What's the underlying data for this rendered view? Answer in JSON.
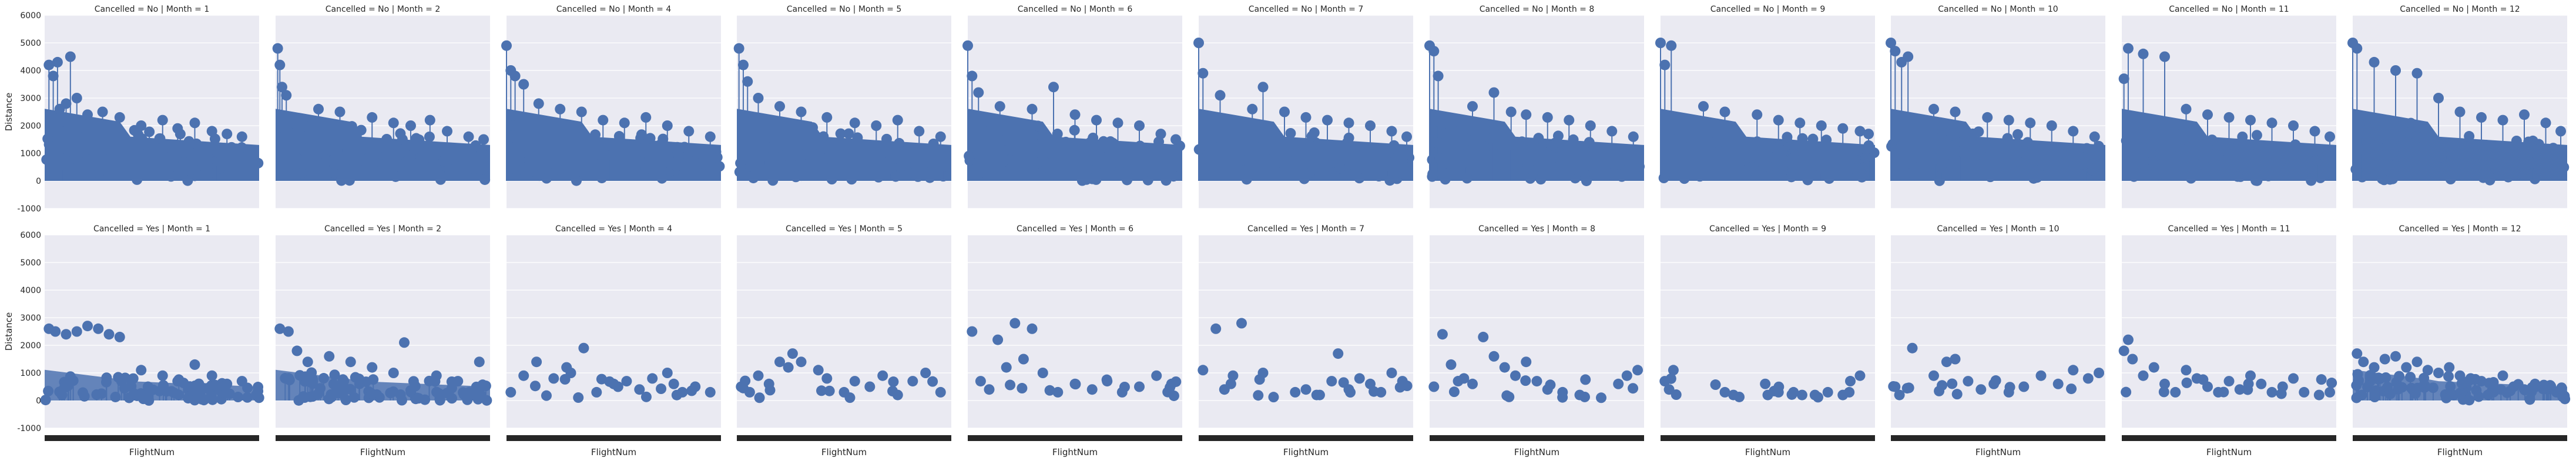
{
  "chart_data": {
    "type": "scatter",
    "title": "",
    "xlabel": "FlightNum",
    "ylabel": "Distance",
    "ylim": [
      -1000,
      6000
    ],
    "yticks": [
      -1000,
      0,
      1000,
      2000,
      3000,
      4000,
      5000,
      6000
    ],
    "grid": true,
    "legend": "none",
    "colors": {
      "points": "#4c72b0",
      "panel_bg": "#eaeaf2",
      "grid": "#ffffff",
      "xticks": "#262626",
      "text": "#262626"
    },
    "panels": [
      {
        "title": "Cancelled = No | Month = 1",
        "cancelled": "No",
        "month": 1,
        "density": "dense",
        "x": [
          0.02,
          0.04,
          0.06,
          0.07,
          0.1,
          0.12,
          0.15,
          0.2,
          0.27,
          0.35,
          0.45,
          0.55,
          0.62,
          0.7,
          0.78,
          0.85,
          0.92
        ],
        "y": [
          4200,
          3800,
          4300,
          2600,
          2800,
          4500,
          3000,
          2400,
          2500,
          2300,
          2000,
          2200,
          1900,
          2100,
          1800,
          1700,
          1600
        ]
      },
      {
        "title": "Cancelled = No | Month = 2",
        "cancelled": "No",
        "month": 2,
        "density": "dense",
        "x": [
          0.01,
          0.02,
          0.03,
          0.05,
          0.2,
          0.3,
          0.45,
          0.55,
          0.63,
          0.72,
          0.8,
          0.9,
          0.97
        ],
        "y": [
          4800,
          4200,
          3400,
          3100,
          2600,
          2500,
          2300,
          2100,
          2000,
          2200,
          1800,
          1600,
          1500
        ]
      },
      {
        "title": "Cancelled = No | Month = 4",
        "cancelled": "No",
        "month": 4,
        "density": "dense",
        "x": [
          0.0,
          0.02,
          0.04,
          0.08,
          0.15,
          0.25,
          0.35,
          0.45,
          0.55,
          0.65,
          0.75,
          0.85,
          0.95
        ],
        "y": [
          4900,
          4000,
          3800,
          3500,
          2800,
          2600,
          2500,
          2200,
          2100,
          2300,
          2000,
          1800,
          1600
        ]
      },
      {
        "title": "Cancelled = No | Month = 5",
        "cancelled": "No",
        "month": 5,
        "density": "dense",
        "x": [
          0.01,
          0.03,
          0.05,
          0.1,
          0.2,
          0.3,
          0.42,
          0.55,
          0.65,
          0.75,
          0.85,
          0.95
        ],
        "y": [
          4800,
          4200,
          3600,
          3000,
          2700,
          2500,
          2300,
          2100,
          2000,
          2200,
          1800,
          1600
        ]
      },
      {
        "title": "Cancelled = No | Month = 6",
        "cancelled": "No",
        "month": 6,
        "density": "dense",
        "x": [
          0.0,
          0.02,
          0.05,
          0.15,
          0.3,
          0.4,
          0.5,
          0.6,
          0.7,
          0.8,
          0.9,
          0.97
        ],
        "y": [
          4900,
          3800,
          3200,
          2700,
          2600,
          3400,
          2400,
          2200,
          2100,
          2000,
          1700,
          1500
        ]
      },
      {
        "title": "Cancelled = No | Month = 7",
        "cancelled": "No",
        "month": 7,
        "density": "dense",
        "x": [
          0.0,
          0.02,
          0.1,
          0.25,
          0.3,
          0.4,
          0.5,
          0.6,
          0.7,
          0.8,
          0.9,
          0.97
        ],
        "y": [
          5000,
          3900,
          3100,
          2600,
          3400,
          2500,
          2300,
          2200,
          2100,
          2000,
          1800,
          1600
        ]
      },
      {
        "title": "Cancelled = No | Month = 8",
        "cancelled": "No",
        "month": 8,
        "density": "dense",
        "x": [
          0.0,
          0.02,
          0.04,
          0.2,
          0.3,
          0.38,
          0.45,
          0.55,
          0.65,
          0.75,
          0.85,
          0.95
        ],
        "y": [
          4900,
          4700,
          3800,
          2700,
          3200,
          2500,
          2400,
          2300,
          2200,
          2000,
          1800,
          1600
        ]
      },
      {
        "title": "Cancelled = No | Month = 9",
        "cancelled": "No",
        "month": 9,
        "density": "dense",
        "x": [
          0.0,
          0.02,
          0.05,
          0.2,
          0.3,
          0.45,
          0.55,
          0.65,
          0.75,
          0.85,
          0.93,
          0.97
        ],
        "y": [
          5000,
          4200,
          4900,
          2700,
          2500,
          2400,
          2200,
          2100,
          2000,
          1900,
          1800,
          1700
        ]
      },
      {
        "title": "Cancelled = No | Month = 10",
        "cancelled": "No",
        "month": 10,
        "density": "dense",
        "x": [
          0.0,
          0.02,
          0.05,
          0.08,
          0.2,
          0.3,
          0.45,
          0.55,
          0.65,
          0.75,
          0.85,
          0.95
        ],
        "y": [
          5000,
          4700,
          4300,
          4500,
          2600,
          2500,
          2300,
          2200,
          2100,
          2000,
          1800,
          1600
        ]
      },
      {
        "title": "Cancelled = No | Month = 11",
        "cancelled": "No",
        "month": 11,
        "density": "dense",
        "x": [
          0.01,
          0.03,
          0.1,
          0.2,
          0.3,
          0.4,
          0.5,
          0.6,
          0.7,
          0.8,
          0.9,
          0.97
        ],
        "y": [
          3700,
          4800,
          4600,
          4500,
          2600,
          2400,
          2300,
          2200,
          2100,
          2000,
          1800,
          1600
        ]
      },
      {
        "title": "Cancelled = No | Month = 12",
        "cancelled": "No",
        "month": 12,
        "density": "dense",
        "x": [
          0.0,
          0.02,
          0.1,
          0.2,
          0.3,
          0.4,
          0.5,
          0.6,
          0.7,
          0.8,
          0.9,
          0.97
        ],
        "y": [
          5000,
          4800,
          4300,
          4000,
          3900,
          3000,
          2500,
          2300,
          2200,
          2400,
          2100,
          1800
        ]
      },
      {
        "title": "Cancelled = Yes | Month = 1",
        "cancelled": "Yes",
        "month": 1,
        "density": "dense",
        "x": [
          0.02,
          0.05,
          0.1,
          0.15,
          0.2,
          0.25,
          0.3,
          0.35,
          0.45,
          0.55,
          0.62,
          0.7,
          0.78,
          0.85,
          0.92
        ],
        "y": [
          2600,
          2500,
          2400,
          2500,
          2700,
          2600,
          2400,
          2300,
          1100,
          900,
          700,
          1300,
          900,
          600,
          700
        ]
      },
      {
        "title": "Cancelled = Yes | Month = 2",
        "cancelled": "Yes",
        "month": 2,
        "density": "dense",
        "x": [
          0.02,
          0.06,
          0.1,
          0.15,
          0.25,
          0.35,
          0.45,
          0.55,
          0.6,
          0.75,
          0.85,
          0.95
        ],
        "y": [
          2600,
          2500,
          1800,
          1400,
          1600,
          1400,
          1200,
          1000,
          2100,
          900,
          700,
          1400
        ]
      },
      {
        "title": "Cancelled = Yes | Month = 4",
        "cancelled": "Yes",
        "month": 4,
        "density": "sparse",
        "x": [
          0.02,
          0.08,
          0.14,
          0.22,
          0.28,
          0.3,
          0.36,
          0.42,
          0.5,
          0.52,
          0.56,
          0.62,
          0.68,
          0.75,
          0.78,
          0.82,
          0.88,
          0.95
        ],
        "y": [
          300,
          900,
          1400,
          800,
          1200,
          1000,
          1900,
          300,
          600,
          500,
          700,
          400,
          800,
          1000,
          600,
          300,
          500,
          300
        ]
      },
      {
        "title": "Cancelled = Yes | Month = 5",
        "cancelled": "Yes",
        "month": 5,
        "density": "sparse",
        "x": [
          0.02,
          0.06,
          0.1,
          0.15,
          0.2,
          0.24,
          0.26,
          0.3,
          0.38,
          0.42,
          0.5,
          0.55,
          0.62,
          0.68,
          0.75,
          0.82,
          0.88,
          0.95
        ],
        "y": [
          500,
          300,
          900,
          600,
          1400,
          1200,
          1700,
          1400,
          1100,
          800,
          300,
          700,
          500,
          900,
          200,
          700,
          1000,
          300
        ]
      },
      {
        "title": "Cancelled = Yes | Month = 6",
        "cancelled": "Yes",
        "month": 6,
        "density": "sparse",
        "x": [
          0.02,
          0.06,
          0.1,
          0.14,
          0.18,
          0.22,
          0.26,
          0.3,
          0.35,
          0.42,
          0.5,
          0.58,
          0.65,
          0.72,
          0.8,
          0.88,
          0.95
        ],
        "y": [
          2500,
          700,
          400,
          2200,
          1200,
          2800,
          1500,
          2600,
          1000,
          300,
          600,
          400,
          700,
          300,
          500,
          900,
          600
        ]
      },
      {
        "title": "Cancelled = Yes | Month = 7",
        "cancelled": "Yes",
        "month": 7,
        "density": "sparse",
        "x": [
          0.02,
          0.08,
          0.12,
          0.16,
          0.2,
          0.3,
          0.45,
          0.5,
          0.55,
          0.62,
          0.65,
          0.7,
          0.75,
          0.8,
          0.85,
          0.9,
          0.95
        ],
        "y": [
          1100,
          2600,
          400,
          900,
          2800,
          1000,
          300,
          400,
          200,
          700,
          1700,
          400,
          800,
          600,
          300,
          1000,
          700
        ]
      },
      {
        "title": "Cancelled = Yes | Month = 8",
        "cancelled": "Yes",
        "month": 8,
        "density": "sparse",
        "x": [
          0.02,
          0.06,
          0.1,
          0.16,
          0.2,
          0.25,
          0.3,
          0.35,
          0.4,
          0.45,
          0.5,
          0.55,
          0.62,
          0.7,
          0.8,
          0.88,
          0.92,
          0.97
        ],
        "y": [
          500,
          2400,
          1300,
          800,
          600,
          2300,
          1600,
          1200,
          900,
          1400,
          700,
          400,
          300,
          200,
          100,
          600,
          900,
          1100
        ]
      },
      {
        "title": "Cancelled = Yes | Month = 9",
        "cancelled": "Yes",
        "month": 9,
        "density": "sparse",
        "x": [
          0.02,
          0.04,
          0.06,
          0.3,
          0.34,
          0.5,
          0.55,
          0.62,
          0.66,
          0.72,
          0.78,
          0.85,
          0.88,
          0.93
        ],
        "y": [
          700,
          400,
          1100,
          300,
          200,
          200,
          300,
          300,
          200,
          200,
          300,
          200,
          300,
          900
        ]
      },
      {
        "title": "Cancelled = Yes | Month = 10",
        "cancelled": "Yes",
        "month": 10,
        "density": "sparse",
        "x": [
          0.02,
          0.04,
          0.1,
          0.2,
          0.26,
          0.3,
          0.36,
          0.42,
          0.48,
          0.55,
          0.62,
          0.7,
          0.78,
          0.85,
          0.92,
          0.97
        ],
        "y": [
          500,
          200,
          1900,
          900,
          1400,
          1500,
          700,
          400,
          600,
          300,
          500,
          900,
          600,
          1100,
          800,
          1000
        ]
      },
      {
        "title": "Cancelled = Yes | Month = 11",
        "cancelled": "Yes",
        "month": 11,
        "density": "sparse",
        "x": [
          0.01,
          0.03,
          0.05,
          0.1,
          0.15,
          0.2,
          0.25,
          0.3,
          0.35,
          0.4,
          0.45,
          0.5,
          0.55,
          0.6,
          0.65,
          0.7,
          0.75,
          0.8,
          0.85,
          0.92,
          0.97
        ],
        "y": [
          1800,
          2200,
          1500,
          900,
          1200,
          600,
          300,
          1100,
          800,
          500,
          300,
          700,
          400,
          900,
          600,
          300,
          500,
          800,
          300,
          200,
          300
        ]
      },
      {
        "title": "Cancelled = Yes | Month = 12",
        "cancelled": "Yes",
        "month": 12,
        "density": "dense",
        "x": [
          0.02,
          0.05,
          0.1,
          0.15,
          0.2,
          0.25,
          0.3,
          0.35,
          0.4,
          0.45,
          0.5,
          0.55,
          0.6,
          0.65,
          0.7,
          0.75,
          0.8,
          0.85,
          0.9,
          0.95
        ],
        "y": [
          1700,
          1400,
          1200,
          1500,
          1600,
          1200,
          1400,
          1100,
          1000,
          1200,
          900,
          800,
          700,
          600,
          900,
          500,
          400,
          600,
          500,
          300
        ]
      }
    ]
  }
}
